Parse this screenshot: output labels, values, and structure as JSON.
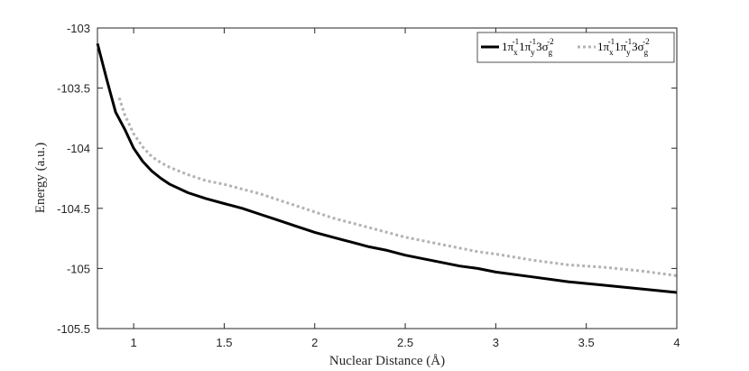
{
  "chart_data": {
    "type": "line",
    "title": "",
    "xlabel": "Nuclear Distance (Å)",
    "ylabel": "Energy (a.u.)",
    "xlim": [
      0.8,
      4.0
    ],
    "ylim": [
      -105.5,
      -103.0
    ],
    "xticks": [
      1,
      1.5,
      2,
      2.5,
      3,
      3.5,
      4
    ],
    "xtick_labels": [
      "1",
      "1.5",
      "2",
      "2.5",
      "3",
      "3.5",
      "4"
    ],
    "yticks": [
      -105.5,
      -105,
      -104.5,
      -104,
      -103.5,
      -103
    ],
    "ytick_labels": [
      "-105.5",
      "-105",
      "-104.5",
      "-104",
      "-103.5",
      "-103"
    ],
    "grid": false,
    "legend_position": "top-right",
    "series": [
      {
        "name": "1π_x⁻¹1π_y⁻¹3σ_g⁻²",
        "style": "solid",
        "color": "#000000",
        "x": [
          0.8,
          0.85,
          0.9,
          0.95,
          1.0,
          1.05,
          1.1,
          1.15,
          1.2,
          1.3,
          1.4,
          1.5,
          1.6,
          1.7,
          1.8,
          1.9,
          2.0,
          2.1,
          2.2,
          2.3,
          2.4,
          2.5,
          2.6,
          2.7,
          2.8,
          2.9,
          3.0,
          3.2,
          3.4,
          3.6,
          3.8,
          4.0
        ],
        "y": [
          -103.13,
          -103.42,
          -103.7,
          -103.84,
          -104.0,
          -104.11,
          -104.19,
          -104.25,
          -104.3,
          -104.37,
          -104.42,
          -104.46,
          -104.5,
          -104.55,
          -104.6,
          -104.65,
          -104.7,
          -104.74,
          -104.78,
          -104.82,
          -104.85,
          -104.89,
          -104.92,
          -104.95,
          -104.98,
          -105.0,
          -105.03,
          -105.07,
          -105.11,
          -105.14,
          -105.17,
          -105.2
        ]
      },
      {
        "name": "1π_x⁻¹1π_y⁻¹3σ_g⁻²",
        "style": "dotted",
        "color": "#b3b3b3",
        "x": [
          0.92,
          0.95,
          1.0,
          1.05,
          1.1,
          1.15,
          1.2,
          1.3,
          1.4,
          1.5,
          1.6,
          1.7,
          1.8,
          1.9,
          2.0,
          2.1,
          2.2,
          2.3,
          2.4,
          2.5,
          2.6,
          2.7,
          2.8,
          2.9,
          3.0,
          3.2,
          3.4,
          3.6,
          3.8,
          4.0
        ],
        "y": [
          -103.58,
          -103.72,
          -103.88,
          -103.99,
          -104.07,
          -104.12,
          -104.16,
          -104.22,
          -104.27,
          -104.3,
          -104.34,
          -104.38,
          -104.43,
          -104.48,
          -104.53,
          -104.58,
          -104.62,
          -104.66,
          -104.7,
          -104.74,
          -104.77,
          -104.8,
          -104.83,
          -104.86,
          -104.88,
          -104.93,
          -104.97,
          -104.99,
          -105.02,
          -105.06
        ]
      }
    ]
  },
  "legend": {
    "entries": [
      {
        "base": "1π",
        "sub": "x",
        "sup": "-1",
        "base2": "1π",
        "sub2": "y",
        "sup2": "-1",
        "base3": "3σ",
        "sub3": "g",
        "sup3": "-2"
      },
      {
        "base": "1π",
        "sub": "x",
        "sup": "-1",
        "base2": "1π",
        "sub2": "y",
        "sup2": "-1",
        "base3": "3σ",
        "sub3": "g",
        "sup3": "-2"
      }
    ]
  }
}
